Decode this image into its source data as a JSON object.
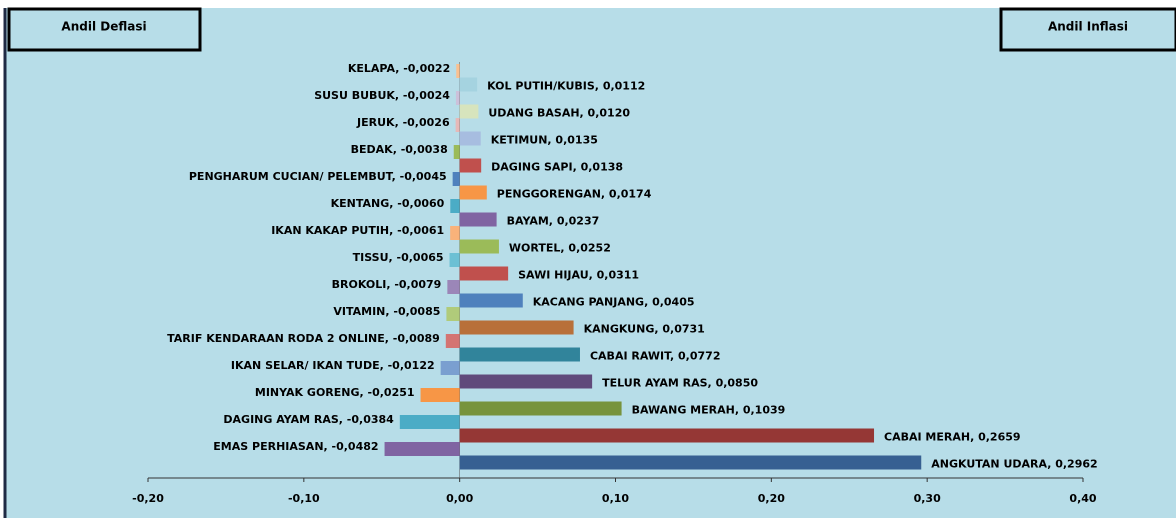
{
  "chart_data": {
    "type": "bar",
    "orientation": "horizontal",
    "annotations": [
      "Andil Deflasi",
      "Andil Inflasi"
    ],
    "values": [
      -0.0022,
      0.0112,
      -0.0024,
      0.012,
      -0.0026,
      0.0135,
      -0.0038,
      0.0138,
      -0.0045,
      0.0174,
      -0.006,
      0.0237,
      -0.0061,
      0.0252,
      -0.0065,
      0.0311,
      -0.0079,
      0.0405,
      -0.0085,
      0.0731,
      -0.0089,
      0.0772,
      -0.0122,
      0.085,
      -0.0251,
      0.1039,
      -0.0384,
      0.2659,
      -0.0482,
      0.2962
    ],
    "value_labels": [
      "KELAPA, -0,0022",
      "KOL PUTIH/KUBIS, 0,0112",
      "SUSU BUBUK, -0,0024",
      "UDANG BASAH, 0,0120",
      "JERUK, -0,0026",
      "KETIMUN, 0,0135",
      "BEDAK, -0,0038",
      "DAGING SAPI, 0,0138",
      "PENGHARUM CUCIAN/ PELEMBUT, -0,0045",
      "PENGGORENGAN, 0,0174",
      "KENTANG, -0,0060",
      "BAYAM, 0,0237",
      "IKAN KAKAP PUTIH, -0,0061",
      "WORTEL, 0,0252",
      "TISSU, -0,0065",
      "SAWI HIJAU, 0,0311",
      "BROKOLI, -0,0079",
      "KACANG PANJANG, 0,0405",
      "VITAMIN, -0,0085",
      "KANGKUNG, 0,0731",
      "TARIF KENDARAAN RODA 2 ONLINE, -0,0089",
      "CABAI RAWIT, 0,0772",
      "IKAN SELAR/ IKAN TUDE, -0,0122",
      "TELUR AYAM RAS, 0,0850",
      "MINYAK GORENG, -0,0251",
      "BAWANG MERAH, 0,1039",
      "DAGING AYAM RAS, -0,0384",
      "CABAI MERAH, 0,2659",
      "EMAS PERHIASAN, -0,0482",
      "ANGKUTAN UDARA, 0,2962"
    ],
    "colors": [
      "#fac090",
      "#a5d3e0",
      "#ccc1da",
      "#d7e4bd",
      "#e6b9b8",
      "#a7bde0",
      "#9bbb59",
      "#c0504d",
      "#4f81bd",
      "#f79646",
      "#4bacc6",
      "#8064a2",
      "#f9b27a",
      "#9bbb59",
      "#6cc0d4",
      "#c0504d",
      "#9b86b8",
      "#4f81bd",
      "#b0cb7a",
      "#b8703a",
      "#d47472",
      "#31849b",
      "#7a9fd0",
      "#604a7b",
      "#f79646",
      "#77933c",
      "#4bacc6",
      "#953735",
      "#8064a2",
      "#376092"
    ],
    "xlim": [
      -0.2,
      0.4
    ],
    "xticks": [
      {
        "value": -0.2,
        "label": "-0,20"
      },
      {
        "value": -0.1,
        "label": "-0,10"
      },
      {
        "value": 0,
        "label": "0,00"
      },
      {
        "value": 0.1,
        "label": "0,10"
      },
      {
        "value": 0.2,
        "label": "0,20"
      },
      {
        "value": 0.3,
        "label": "0,30"
      },
      {
        "value": 0.4,
        "label": "0,40"
      }
    ]
  }
}
